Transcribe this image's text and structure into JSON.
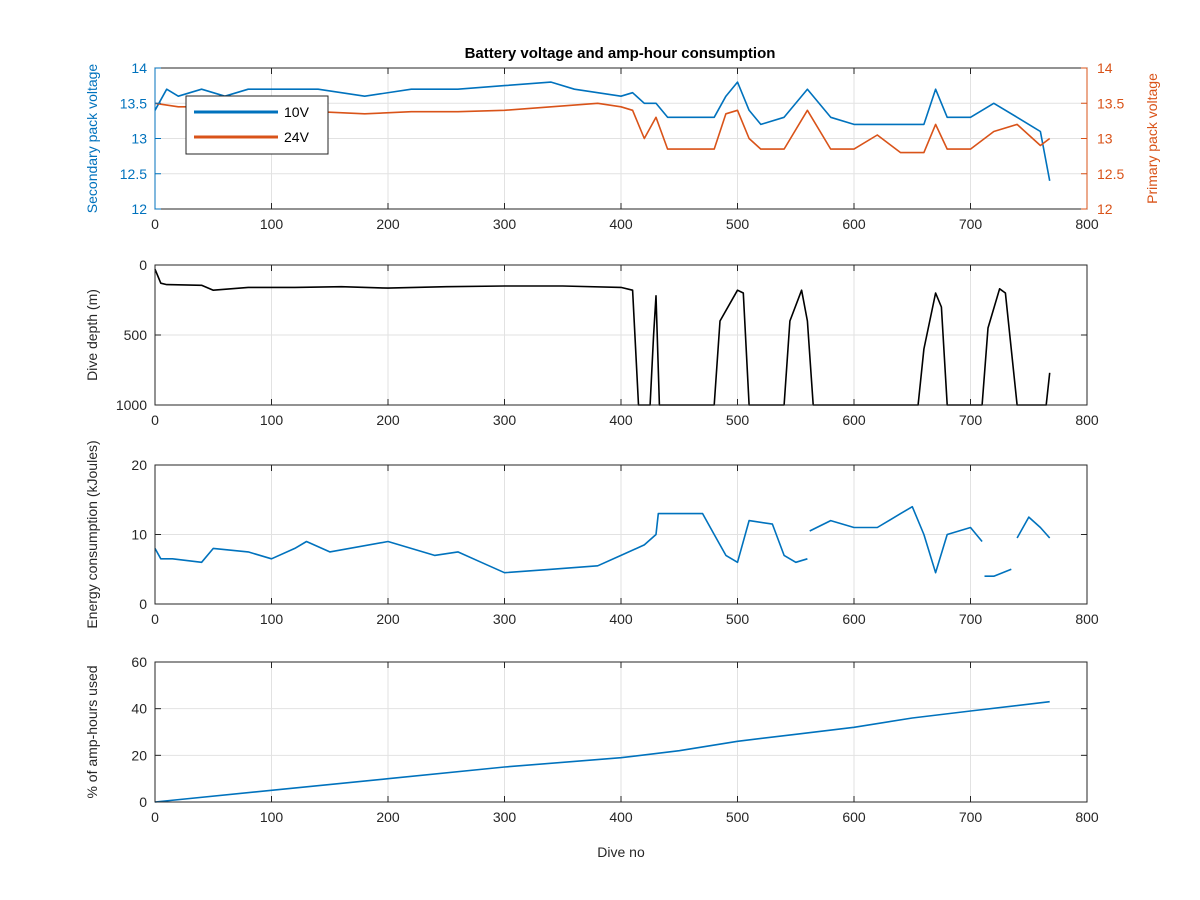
{
  "figure": {
    "title": "Battery voltage and amp-hour consumption"
  },
  "colors": {
    "series_10v": "#0072BD",
    "series_24v": "#D95319",
    "depth": "#000000",
    "energy": "#0072BD",
    "amphours": "#0072BD",
    "axis": "#262626",
    "grid": "#e2e2e2"
  },
  "chart_data": [
    {
      "type": "line",
      "title": "Battery voltage and amp-hour consumption",
      "xlabel": "",
      "ylabel": "Secondary pack voltage",
      "ylabel_right": "Primary pack voltage",
      "xlim": [
        0,
        800
      ],
      "ylim": [
        12,
        14
      ],
      "ylim_right": [
        12,
        14
      ],
      "xticks": [
        0,
        100,
        200,
        300,
        400,
        500,
        600,
        700,
        800
      ],
      "yticks": [
        12,
        12.5,
        13,
        13.5,
        14
      ],
      "yticks_right": [
        12,
        12.5,
        13,
        13.5,
        14
      ],
      "grid": true,
      "legend": "top-left",
      "series": [
        {
          "name": "10V",
          "axis": "left",
          "x": [
            0,
            10,
            20,
            40,
            60,
            80,
            100,
            140,
            180,
            220,
            260,
            300,
            340,
            360,
            380,
            400,
            410,
            420,
            430,
            440,
            460,
            480,
            490,
            500,
            510,
            520,
            540,
            560,
            580,
            600,
            620,
            640,
            660,
            670,
            680,
            700,
            720,
            740,
            760,
            768
          ],
          "y": [
            13.4,
            13.7,
            13.6,
            13.7,
            13.6,
            13.7,
            13.7,
            13.7,
            13.6,
            13.7,
            13.7,
            13.75,
            13.8,
            13.7,
            13.65,
            13.6,
            13.65,
            13.5,
            13.5,
            13.3,
            13.3,
            13.3,
            13.6,
            13.8,
            13.4,
            13.2,
            13.3,
            13.7,
            13.3,
            13.2,
            13.2,
            13.2,
            13.2,
            13.7,
            13.3,
            13.3,
            13.5,
            13.3,
            13.1,
            12.4
          ]
        },
        {
          "name": "24V",
          "axis": "right",
          "x": [
            0,
            20,
            40,
            60,
            100,
            140,
            180,
            220,
            260,
            300,
            340,
            380,
            400,
            410,
            420,
            430,
            440,
            460,
            480,
            490,
            500,
            510,
            520,
            540,
            560,
            580,
            600,
            620,
            640,
            660,
            670,
            680,
            700,
            720,
            740,
            760,
            768
          ],
          "y": [
            13.5,
            13.45,
            13.45,
            13.4,
            13.4,
            13.38,
            13.35,
            13.38,
            13.38,
            13.4,
            13.45,
            13.5,
            13.45,
            13.4,
            13.0,
            13.3,
            12.85,
            12.85,
            12.85,
            13.35,
            13.4,
            13.0,
            12.85,
            12.85,
            13.4,
            12.85,
            12.85,
            13.05,
            12.8,
            12.8,
            13.2,
            12.85,
            12.85,
            13.1,
            13.2,
            12.9,
            13.0
          ]
        }
      ]
    },
    {
      "type": "line",
      "xlabel": "",
      "ylabel": "Dive depth (m)",
      "xlim": [
        0,
        800
      ],
      "ylim": [
        0,
        1000
      ],
      "y_reversed": true,
      "xticks": [
        0,
        100,
        200,
        300,
        400,
        500,
        600,
        700,
        800
      ],
      "yticks": [
        0,
        500,
        1000
      ],
      "grid": true,
      "series": [
        {
          "x": [
            0,
            5,
            10,
            40,
            50,
            80,
            120,
            160,
            200,
            250,
            300,
            350,
            400,
            410,
            415,
            425,
            428,
            430,
            433,
            440,
            480,
            485,
            500,
            505,
            510,
            520,
            540,
            545,
            555,
            560,
            565,
            600,
            655,
            660,
            670,
            675,
            680,
            700,
            710,
            715,
            725,
            730,
            740,
            760,
            765,
            768
          ],
          "y": [
            30,
            130,
            140,
            145,
            180,
            160,
            160,
            155,
            165,
            155,
            150,
            150,
            160,
            180,
            1000,
            1000,
            500,
            220,
            1000,
            1000,
            1000,
            400,
            180,
            200,
            1000,
            1000,
            1000,
            400,
            180,
            400,
            1000,
            1000,
            1000,
            600,
            200,
            300,
            1000,
            1000,
            1000,
            450,
            170,
            200,
            1000,
            1000,
            1000,
            770
          ]
        }
      ]
    },
    {
      "type": "line",
      "xlabel": "",
      "ylabel": "Energy consumption (kJoules)",
      "xlim": [
        0,
        800
      ],
      "ylim": [
        0,
        20
      ],
      "xticks": [
        0,
        100,
        200,
        300,
        400,
        500,
        600,
        700,
        800
      ],
      "yticks": [
        0,
        10,
        20
      ],
      "grid": true,
      "series": [
        {
          "x": [
            0,
            5,
            15,
            40,
            50,
            80,
            100,
            120,
            130,
            150,
            200,
            240,
            260,
            280,
            300,
            340,
            380,
            400,
            420,
            430,
            432,
            450,
            470,
            480,
            490,
            500,
            510,
            530,
            540,
            550,
            560,
            null,
            562,
            580,
            600,
            620,
            640,
            650,
            660,
            670,
            680,
            700,
            710,
            null,
            712,
            720,
            735,
            null,
            740,
            750,
            760,
            768
          ],
          "y": [
            8,
            6.5,
            6.5,
            6,
            8,
            7.5,
            6.5,
            8,
            9,
            7.5,
            9,
            7,
            7.5,
            6,
            4.5,
            5,
            5.5,
            7,
            8.5,
            10,
            13,
            13,
            13,
            10,
            7,
            6,
            12,
            11.5,
            7,
            6,
            6.5,
            null,
            10.5,
            12,
            11,
            11,
            13,
            14,
            10,
            4.5,
            10,
            11,
            9,
            null,
            4,
            4,
            5,
            null,
            9.5,
            12.5,
            11,
            9.5
          ]
        }
      ]
    },
    {
      "type": "line",
      "xlabel": "Dive no",
      "ylabel": "% of amp-hours used",
      "xlim": [
        0,
        800
      ],
      "ylim": [
        0,
        60
      ],
      "xticks": [
        0,
        100,
        200,
        300,
        400,
        500,
        600,
        700,
        800
      ],
      "yticks": [
        0,
        20,
        40,
        60
      ],
      "grid": true,
      "series": [
        {
          "x": [
            0,
            100,
            200,
            300,
            400,
            450,
            500,
            550,
            600,
            650,
            700,
            768
          ],
          "y": [
            0,
            5,
            10,
            15,
            19,
            22,
            26,
            29,
            32,
            36,
            39,
            43
          ]
        }
      ]
    }
  ]
}
